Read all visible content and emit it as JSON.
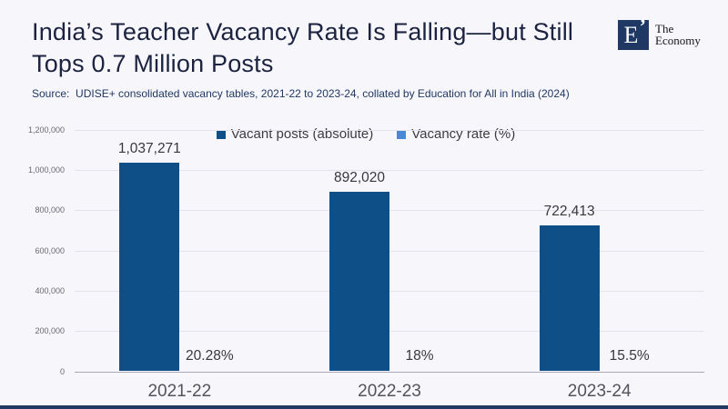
{
  "header": {
    "title_lines": [
      "India’s Teacher Vacancy Rate Is Falling—but Still",
      "Tops 0.7 Million Posts"
    ],
    "source": "Source:  UDISE+ consolidated vacancy tables, 2021-22 to 2023-24, collated by Education for All in India (2024)"
  },
  "logo": {
    "letter": "E",
    "mark": "’",
    "name_line1": "The",
    "name_line2": "Economy",
    "square_color": "#1f3864"
  },
  "chart_data": {
    "type": "bar",
    "categories": [
      "2021-22",
      "2022-23",
      "2023-24"
    ],
    "series": [
      {
        "name": "Vacant posts (absolute)",
        "color": "#0f4f87",
        "values": [
          1037271,
          892020,
          722413
        ],
        "labels": [
          "1,037,271",
          "892,020",
          "722,413"
        ]
      },
      {
        "name": "Vacancy rate (%)",
        "color": "#4a87d9",
        "values": [
          20.28,
          18,
          15.5
        ],
        "labels": [
          "20.28%",
          "18%",
          "15.5%"
        ]
      }
    ],
    "ylim": [
      0,
      1200000
    ],
    "yticks": [
      0,
      200000,
      400000,
      600000,
      800000,
      1000000,
      1200000
    ],
    "ytick_labels": [
      "0",
      "200,000",
      "400,000",
      "600,000",
      "800,000",
      "1,000,000",
      "1,200,000"
    ],
    "grid": true,
    "legend_position": "top"
  },
  "colors": {
    "background": "#f7f7fb",
    "title": "#1b2340",
    "source": "#1f3864",
    "footer_bar": "#1f3864"
  }
}
